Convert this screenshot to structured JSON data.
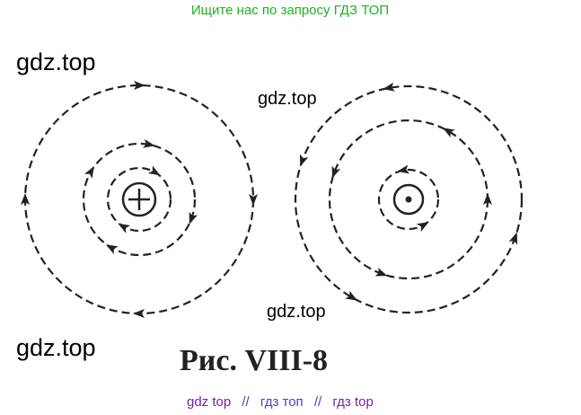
{
  "header": {
    "text": "Ищите нас по запросу ГДЗ ТОП"
  },
  "watermarks": [
    "gdz.top",
    "gdz.top",
    "gdz.top",
    "gdz.top"
  ],
  "figure": {
    "caption": "Рис. VIII-8"
  },
  "footer": {
    "parts": [
      "gdz top",
      "//",
      "гдз топ",
      "//",
      "гдз top"
    ]
  }
}
